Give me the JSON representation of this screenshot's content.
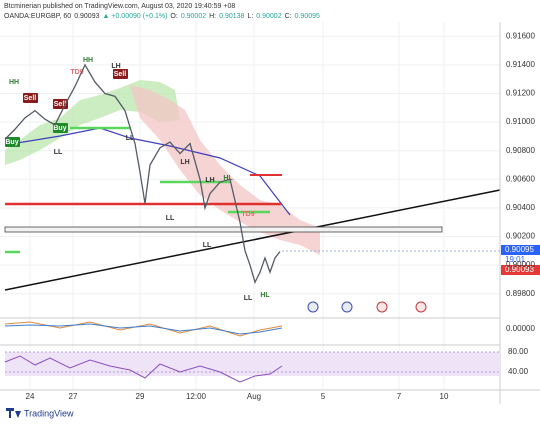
{
  "header": {
    "publisher": "Btcminerian published on TradingView.com, August 03, 2020 19:40:59 +08",
    "symbol": "OANDA:EURGBP, 60",
    "last": "0.90093",
    "change": "▲ +0.00090 (+0.1%)",
    "ohlc": [
      "O:",
      "0.90002",
      "H:",
      "0.90138",
      "L:",
      "0.90002",
      "C:",
      "0.90095"
    ]
  },
  "chart_data": {
    "type": "line",
    "x": [
      1,
      3,
      5,
      7,
      9,
      11,
      13,
      15,
      17,
      19,
      21,
      23,
      25,
      27,
      28,
      29,
      30,
      32,
      34,
      36,
      38,
      40,
      41,
      42,
      44,
      46,
      47,
      48,
      49,
      50,
      51,
      52,
      53,
      54,
      55,
      56
    ],
    "series": [
      {
        "name": "EURGBP",
        "color": "#555b66",
        "values": [
          0.9088,
          0.9095,
          0.9103,
          0.9108,
          0.9102,
          0.9098,
          0.9112,
          0.9125,
          0.914,
          0.9128,
          0.912,
          0.9118,
          0.9108,
          0.9085,
          0.9065,
          0.9043,
          0.907,
          0.9082,
          0.9086,
          0.9078,
          0.9085,
          0.906,
          0.904,
          0.905,
          0.9058,
          0.906,
          0.9045,
          0.903,
          0.901,
          0.9,
          0.8988,
          0.8995,
          0.9005,
          0.8995,
          0.9005,
          0.90095
        ]
      }
    ],
    "xlim": [
      0,
      100
    ],
    "xticks": [
      {
        "value": 6,
        "label": "24"
      },
      {
        "value": 14.6,
        "label": "27"
      },
      {
        "value": 28,
        "label": "29"
      },
      {
        "value": 39.2,
        "label": "12:00"
      },
      {
        "value": 50.8,
        "label": "Aug"
      },
      {
        "value": 64.6,
        "label": "5"
      },
      {
        "value": 79.8,
        "label": "7"
      },
      {
        "value": 88.8,
        "label": "10"
      }
    ],
    "ylim": [
      0.8963,
      0.917
    ],
    "yticks": [
      {
        "value": 0.898,
        "label": "0.89800"
      },
      {
        "value": 0.9,
        "label": "0.90000"
      },
      {
        "value": 0.902,
        "label": "0.90200"
      },
      {
        "value": 0.904,
        "label": "0.90400"
      },
      {
        "value": 0.906,
        "label": "0.90600"
      },
      {
        "value": 0.908,
        "label": "0.90800"
      },
      {
        "value": 0.91,
        "label": "0.91000"
      },
      {
        "value": 0.912,
        "label": "0.91200"
      },
      {
        "value": 0.914,
        "label": "0.91400"
      },
      {
        "value": 0.916,
        "label": "0.91600"
      }
    ],
    "grid": true
  },
  "price_labels": {
    "close": "0.90095",
    "countdown": "19:01",
    "bid": "0.90093"
  },
  "annotations": [
    "HH",
    "Sell",
    "Sell",
    "Buy",
    "Buy",
    "HH",
    "TD9",
    "LH",
    "Sell",
    "LL",
    "LL",
    "LH",
    "LL",
    "LH",
    "HL",
    "LL",
    "TD9",
    "LL",
    "HL"
  ],
  "oscillator": {
    "tick": "0.00000"
  },
  "rsi": {
    "ylim": [
      4,
      92
    ],
    "yticks": [
      {
        "value": 80,
        "label": "80.00"
      },
      {
        "value": 40,
        "label": "40.00"
      }
    ]
  },
  "footer": {
    "brand": "TradingView"
  }
}
